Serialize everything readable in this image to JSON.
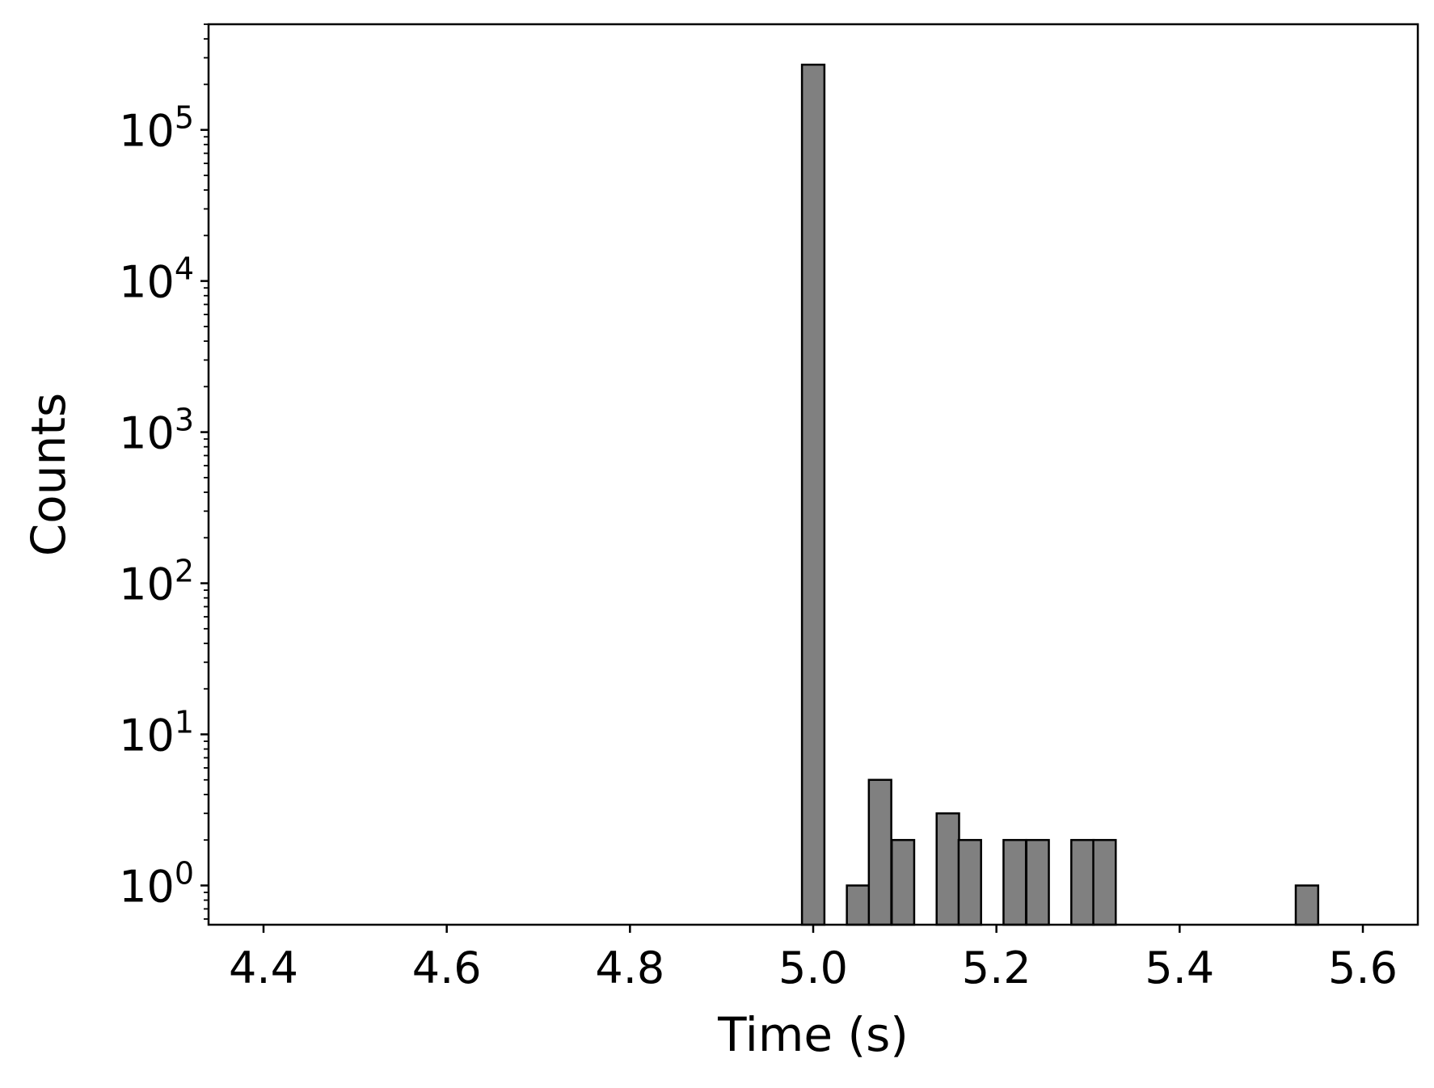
{
  "chart_data": {
    "type": "bar",
    "title": "",
    "xlabel": "Time (s)",
    "ylabel": "Counts",
    "x_scale": "linear",
    "y_scale": "log",
    "xlim": [
      4.34,
      5.66
    ],
    "ylim": [
      0.55,
      500000
    ],
    "grid": false,
    "legend": "none",
    "bar_color": "#808080",
    "edge_color": "#000000",
    "bin_width": 0.0245,
    "x_ticks": [
      {
        "value": 4.4,
        "label": "4.4"
      },
      {
        "value": 4.6,
        "label": "4.6"
      },
      {
        "value": 4.8,
        "label": "4.8"
      },
      {
        "value": 5.0,
        "label": "5.0"
      },
      {
        "value": 5.2,
        "label": "5.2"
      },
      {
        "value": 5.4,
        "label": "5.4"
      },
      {
        "value": 5.6,
        "label": "5.6"
      }
    ],
    "y_ticks": [
      {
        "value": 1,
        "base": "10",
        "exp": "0"
      },
      {
        "value": 10,
        "base": "10",
        "exp": "1"
      },
      {
        "value": 100,
        "base": "10",
        "exp": "2"
      },
      {
        "value": 1000,
        "base": "10",
        "exp": "3"
      },
      {
        "value": 10000,
        "base": "10",
        "exp": "4"
      },
      {
        "value": 100000,
        "base": "10",
        "exp": "5"
      }
    ],
    "bins": [
      {
        "x": 5.0,
        "count": 270000
      },
      {
        "x": 5.049,
        "count": 1
      },
      {
        "x": 5.073,
        "count": 5
      },
      {
        "x": 5.098,
        "count": 2
      },
      {
        "x": 5.147,
        "count": 3
      },
      {
        "x": 5.171,
        "count": 2
      },
      {
        "x": 5.22,
        "count": 2
      },
      {
        "x": 5.245,
        "count": 2
      },
      {
        "x": 5.294,
        "count": 2
      },
      {
        "x": 5.318,
        "count": 2
      },
      {
        "x": 5.539,
        "count": 1
      }
    ]
  }
}
